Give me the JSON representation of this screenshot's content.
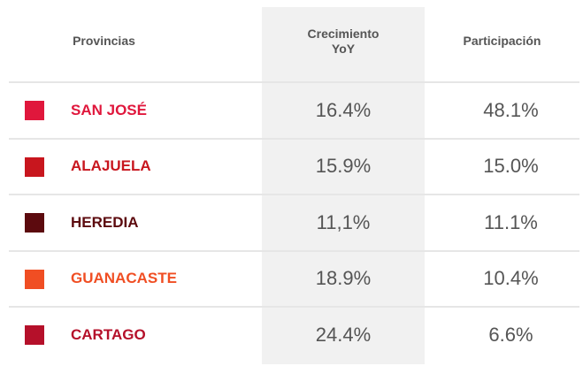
{
  "header": {
    "columns": [
      "Provincias",
      "Crecimiento\nYoY",
      "Participación"
    ]
  },
  "table": {
    "rows": [
      {
        "name": "SAN JOSÉ",
        "color": "#e0173c",
        "growth": "16.4%",
        "share": "48.1%"
      },
      {
        "name": "ALAJUELA",
        "color": "#c8161e",
        "growth": "15.9%",
        "share": "15.0%"
      },
      {
        "name": "HEREDIA",
        "color": "#5c0a0e",
        "growth": "11,1%",
        "share": "11.1%"
      },
      {
        "name": "GUANACASTE",
        "color": "#f04e23",
        "growth": "18.9%",
        "share": "10.4%"
      },
      {
        "name": "CARTAGO",
        "color": "#b5102a",
        "growth": "24.4%",
        "share": "6.6%"
      }
    ]
  }
}
